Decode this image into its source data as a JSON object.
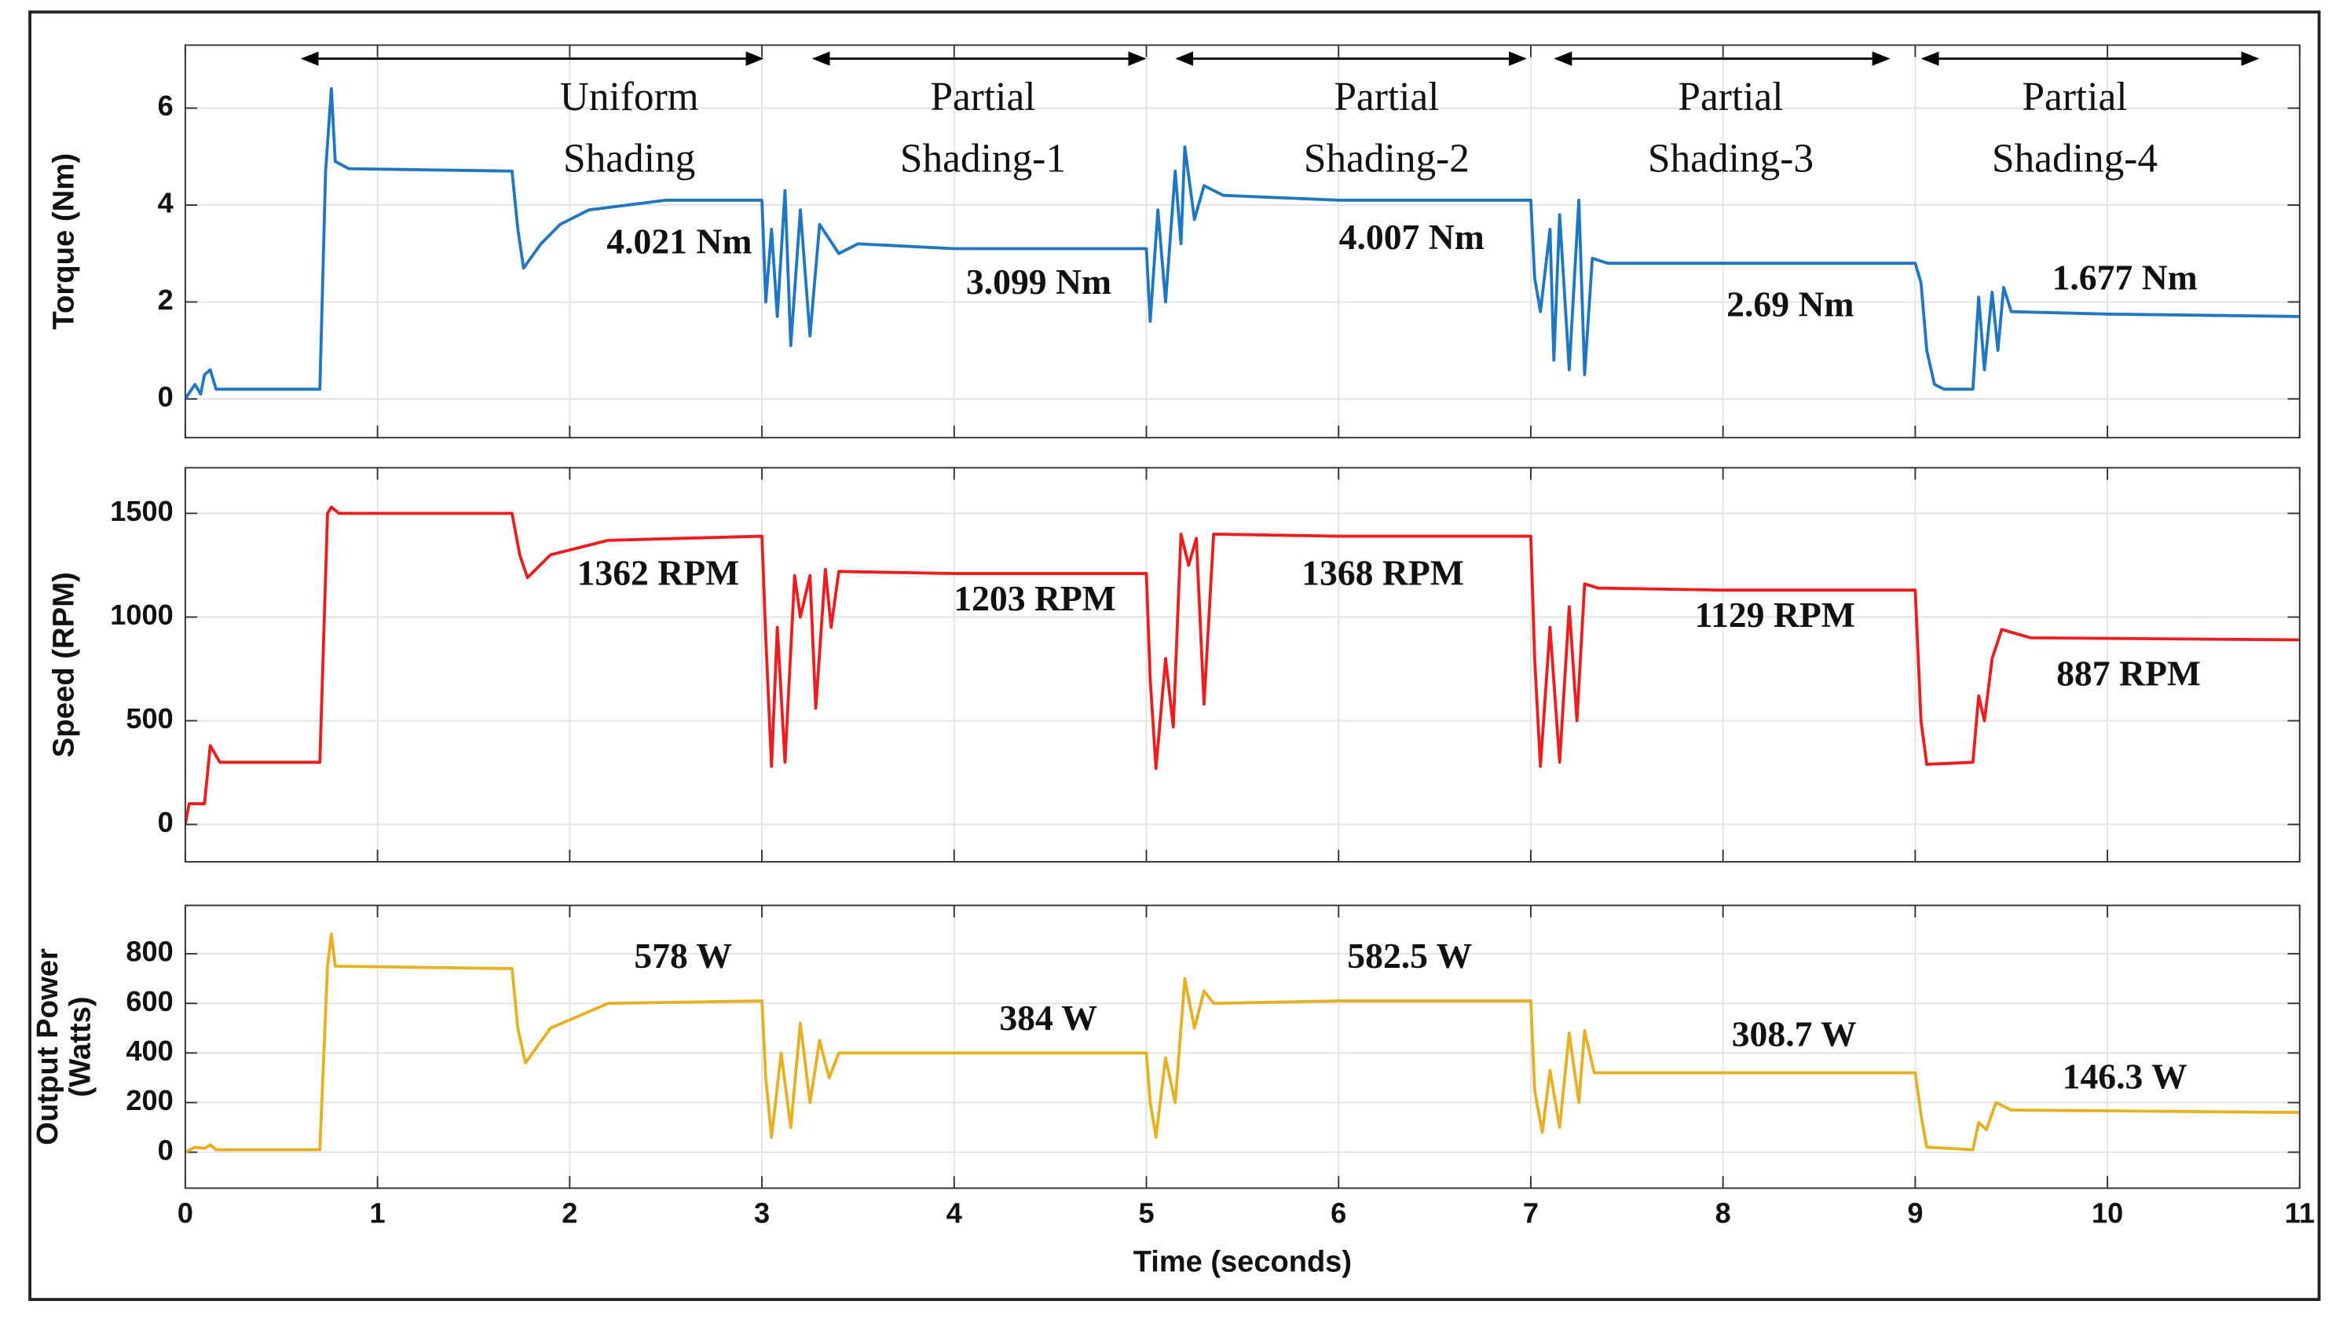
{
  "chart_data": [
    {
      "type": "line",
      "ylabel": [
        "Torque (Nm)"
      ],
      "xlim": [
        0,
        11
      ],
      "xticks": [
        0,
        1,
        2,
        3,
        4,
        5,
        6,
        7,
        8,
        9,
        10,
        11
      ],
      "ylim": [
        -0.8,
        7.3
      ],
      "yticks": [
        0,
        2,
        4,
        6
      ],
      "grid": true,
      "x": [
        0,
        0.05,
        0.08,
        0.1,
        0.13,
        0.16,
        0.2,
        0.7,
        0.73,
        0.76,
        0.78,
        0.85,
        1.7,
        1.73,
        1.76,
        1.85,
        1.95,
        2.1,
        2.5,
        3.0,
        3.02,
        3.05,
        3.08,
        3.12,
        3.15,
        3.2,
        3.25,
        3.3,
        3.4,
        3.5,
        4.0,
        4.5,
        5.0,
        5.02,
        5.06,
        5.1,
        5.15,
        5.18,
        5.2,
        5.25,
        5.3,
        5.4,
        6,
        7.0,
        7.02,
        7.05,
        7.1,
        7.12,
        7.15,
        7.2,
        7.25,
        7.28,
        7.32,
        7.4,
        8,
        9.0,
        9.03,
        9.06,
        9.1,
        9.15,
        9.3,
        9.33,
        9.36,
        9.4,
        9.43,
        9.46,
        9.5,
        10,
        11
      ],
      "series": [
        {
          "color": "#1f77c4",
          "values": [
            0,
            0.3,
            0.1,
            0.5,
            0.6,
            0.2,
            0.2,
            0.2,
            4.7,
            6.4,
            4.9,
            4.75,
            4.7,
            3.5,
            2.7,
            3.2,
            3.6,
            3.9,
            4.1,
            4.1,
            2.0,
            3.5,
            1.7,
            4.3,
            1.1,
            3.9,
            1.3,
            3.6,
            3.0,
            3.2,
            3.1,
            3.1,
            3.1,
            1.6,
            3.9,
            2.0,
            4.7,
            3.2,
            5.2,
            3.7,
            4.4,
            4.2,
            4.1,
            4.1,
            2.5,
            1.8,
            3.5,
            0.8,
            3.8,
            0.6,
            4.1,
            0.5,
            2.9,
            2.8,
            2.8,
            2.8,
            2.4,
            1.0,
            0.3,
            0.2,
            0.2,
            2.1,
            0.6,
            2.2,
            1.0,
            2.3,
            1.8,
            1.75,
            1.7
          ]
        }
      ],
      "annotations": [
        {
          "text": "4.021 Nm",
          "x": 2.57,
          "y": 3.17
        },
        {
          "text": "3.099 Nm",
          "x": 4.44,
          "y": 2.34
        },
        {
          "text": "4.007 Nm",
          "x": 6.38,
          "y": 3.26
        },
        {
          "text": "2.69 Nm",
          "x": 8.35,
          "y": 1.88
        },
        {
          "text": "1.677 Nm",
          "x": 10.09,
          "y": 2.43
        }
      ],
      "regions": [
        {
          "label": [
            "Uniform",
            "Shading"
          ],
          "start": 0.61,
          "end": 3.0,
          "x": 2.31
        },
        {
          "label": [
            "Partial",
            "Shading-1"
          ],
          "start": 3.27,
          "end": 4.99,
          "x": 4.15
        },
        {
          "label": [
            "Partial",
            "Shading-2"
          ],
          "start": 5.16,
          "end": 6.97,
          "x": 6.25
        },
        {
          "label": [
            "Partial",
            "Shading-3"
          ],
          "start": 7.13,
          "end": 8.86,
          "x": 8.04
        },
        {
          "label": [
            "Partial",
            "Shading-4"
          ],
          "start": 9.04,
          "end": 10.78,
          "x": 9.83
        }
      ]
    },
    {
      "type": "line",
      "ylabel": [
        "Speed (RPM)"
      ],
      "xlim": [
        0,
        11
      ],
      "xticks": [
        0,
        1,
        2,
        3,
        4,
        5,
        6,
        7,
        8,
        9,
        10,
        11
      ],
      "ylim": [
        -180,
        1720
      ],
      "yticks": [
        0,
        500,
        1000,
        1500
      ],
      "grid": true,
      "x": [
        0,
        0.02,
        0.1,
        0.13,
        0.18,
        0.7,
        0.74,
        0.76,
        0.8,
        1.7,
        1.74,
        1.78,
        1.9,
        2.2,
        3.0,
        3.02,
        3.05,
        3.08,
        3.12,
        3.17,
        3.2,
        3.25,
        3.28,
        3.33,
        3.36,
        3.4,
        4,
        5,
        5.02,
        5.05,
        5.1,
        5.14,
        5.18,
        5.22,
        5.26,
        5.3,
        5.35,
        6,
        7,
        7.02,
        7.05,
        7.1,
        7.15,
        7.2,
        7.24,
        7.28,
        7.35,
        8,
        9,
        9.03,
        9.06,
        9.3,
        9.33,
        9.36,
        9.4,
        9.45,
        9.6,
        11
      ],
      "series": [
        {
          "color": "#ee1c1c",
          "values": [
            0,
            100,
            100,
            380,
            300,
            300,
            1500,
            1530,
            1500,
            1500,
            1300,
            1190,
            1300,
            1370,
            1390,
            900,
            280,
            950,
            300,
            1200,
            1000,
            1200,
            560,
            1230,
            950,
            1220,
            1210,
            1210,
            700,
            270,
            800,
            470,
            1400,
            1250,
            1380,
            580,
            1400,
            1390,
            1390,
            800,
            280,
            950,
            300,
            1050,
            500,
            1160,
            1140,
            1130,
            1130,
            500,
            290,
            300,
            620,
            500,
            800,
            940,
            900,
            890
          ]
        }
      ],
      "annotations": [
        {
          "text": "1362 RPM",
          "x": 2.46,
          "y": 1196
        },
        {
          "text": "1203 RPM",
          "x": 4.42,
          "y": 1072
        },
        {
          "text": "1368 RPM",
          "x": 6.23,
          "y": 1196
        },
        {
          "text": "1129 RPM",
          "x": 8.27,
          "y": 993
        },
        {
          "text": "887 RPM",
          "x": 10.11,
          "y": 710
        }
      ]
    },
    {
      "type": "line",
      "ylabel": [
        "Output Power",
        "(Watts)"
      ],
      "xlabel": "Time (seconds)",
      "xlim": [
        0,
        11
      ],
      "xticks": [
        0,
        1,
        2,
        3,
        4,
        5,
        6,
        7,
        8,
        9,
        10,
        11
      ],
      "ylim": [
        -145,
        995
      ],
      "yticks": [
        0,
        200,
        400,
        600,
        800
      ],
      "grid": true,
      "x": [
        0,
        0.05,
        0.1,
        0.13,
        0.16,
        0.7,
        0.74,
        0.76,
        0.78,
        1.7,
        1.73,
        1.77,
        1.9,
        2.2,
        3,
        3.02,
        3.05,
        3.1,
        3.15,
        3.2,
        3.25,
        3.3,
        3.35,
        3.4,
        4,
        5,
        5.02,
        5.05,
        5.1,
        5.15,
        5.2,
        5.25,
        5.3,
        5.35,
        6,
        7,
        7.02,
        7.06,
        7.1,
        7.15,
        7.2,
        7.25,
        7.28,
        7.33,
        8,
        9,
        9.03,
        9.06,
        9.3,
        9.33,
        9.37,
        9.42,
        9.5,
        11
      ],
      "series": [
        {
          "color": "#e8b020",
          "values": [
            0,
            20,
            15,
            30,
            10,
            10,
            750,
            880,
            750,
            740,
            500,
            360,
            500,
            600,
            610,
            300,
            60,
            400,
            100,
            520,
            200,
            450,
            300,
            400,
            400,
            400,
            200,
            60,
            380,
            200,
            700,
            500,
            650,
            600,
            610,
            610,
            250,
            80,
            330,
            100,
            480,
            200,
            490,
            320,
            320,
            320,
            150,
            20,
            10,
            120,
            90,
            200,
            170,
            160
          ]
        }
      ],
      "annotations": [
        {
          "text": "578 W",
          "x": 2.59,
          "y": 776
        },
        {
          "text": "384 W",
          "x": 4.49,
          "y": 527
        },
        {
          "text": "582.5 W",
          "x": 6.37,
          "y": 776
        },
        {
          "text": "308.7 W",
          "x": 8.37,
          "y": 461
        },
        {
          "text": "146.3 W",
          "x": 10.09,
          "y": 291
        }
      ]
    }
  ]
}
